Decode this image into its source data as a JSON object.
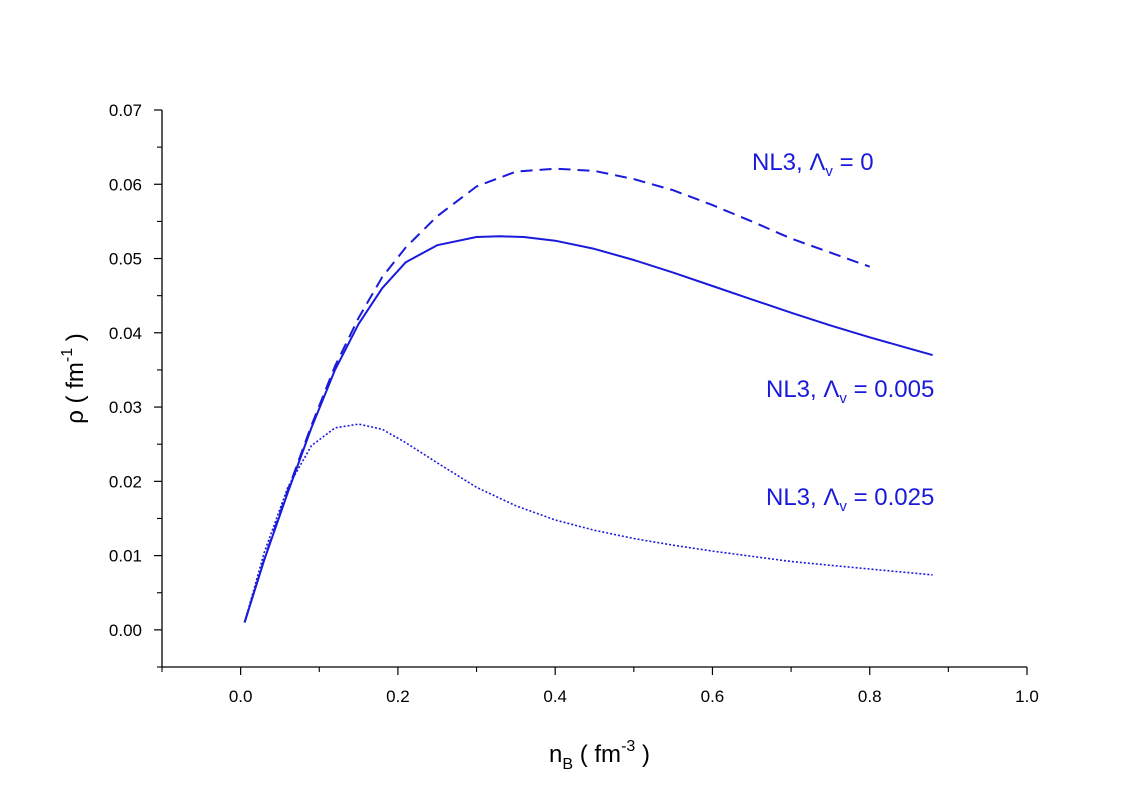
{
  "chart_data": {
    "type": "line",
    "xlabel": {
      "base": "n",
      "sub": "B",
      "open": " ( fm",
      "sup": "-3",
      "close": " )"
    },
    "ylabel": {
      "base": "ρ",
      "open": " ( fm",
      "sup": "-1",
      "close": " )"
    },
    "xlim": [
      -0.1,
      1.0
    ],
    "ylim": [
      -0.005,
      0.07
    ],
    "xticks": [
      "0.0",
      "0.2",
      "0.4",
      "0.6",
      "0.8",
      "1.0"
    ],
    "yticks": [
      "0.00",
      "0.01",
      "0.02",
      "0.03",
      "0.04",
      "0.05",
      "0.06",
      "0.07"
    ],
    "grid": false,
    "series_color": "#1a1adb",
    "series": [
      {
        "style": "dashed",
        "label": {
          "prefix": "NL3, ",
          "symbol": "Λ",
          "sub": "v",
          "value": " = 0"
        },
        "x": [
          0.005,
          0.03,
          0.06,
          0.09,
          0.12,
          0.15,
          0.18,
          0.21,
          0.25,
          0.3,
          0.35,
          0.4,
          0.45,
          0.5,
          0.55,
          0.6,
          0.65,
          0.7,
          0.75,
          0.8
        ],
        "y": [
          0.001,
          0.0095,
          0.0188,
          0.0275,
          0.0355,
          0.042,
          0.0475,
          0.0515,
          0.0557,
          0.0597,
          0.0617,
          0.0621,
          0.0618,
          0.0607,
          0.0592,
          0.0572,
          0.055,
          0.0527,
          0.0508,
          0.0489
        ]
      },
      {
        "style": "solid",
        "label": {
          "prefix": "NL3, ",
          "symbol": "Λ",
          "sub": "v",
          "value": " = 0.005"
        },
        "x": [
          0.005,
          0.03,
          0.06,
          0.09,
          0.12,
          0.15,
          0.18,
          0.21,
          0.25,
          0.3,
          0.33,
          0.36,
          0.4,
          0.45,
          0.5,
          0.55,
          0.6,
          0.65,
          0.7,
          0.75,
          0.8,
          0.85,
          0.88
        ],
        "y": [
          0.001,
          0.0094,
          0.0185,
          0.0272,
          0.035,
          0.0412,
          0.046,
          0.0495,
          0.0518,
          0.0529,
          0.053,
          0.0529,
          0.0524,
          0.0513,
          0.0498,
          0.0481,
          0.0463,
          0.0445,
          0.0427,
          0.041,
          0.0394,
          0.0379,
          0.037
        ]
      },
      {
        "style": "dotted",
        "label": {
          "prefix": "NL3, ",
          "symbol": "Λ",
          "sub": "v",
          "value": " = 0.025"
        },
        "x": [
          0.005,
          0.03,
          0.06,
          0.09,
          0.12,
          0.15,
          0.18,
          0.21,
          0.25,
          0.3,
          0.35,
          0.4,
          0.45,
          0.5,
          0.55,
          0.6,
          0.65,
          0.7,
          0.75,
          0.8,
          0.85,
          0.88
        ],
        "y": [
          0.001,
          0.0104,
          0.0192,
          0.0248,
          0.0272,
          0.0277,
          0.027,
          0.0252,
          0.0225,
          0.0192,
          0.0167,
          0.0148,
          0.0134,
          0.0123,
          0.0114,
          0.0106,
          0.0099,
          0.0092,
          0.0087,
          0.0082,
          0.0077,
          0.0074
        ]
      }
    ]
  }
}
